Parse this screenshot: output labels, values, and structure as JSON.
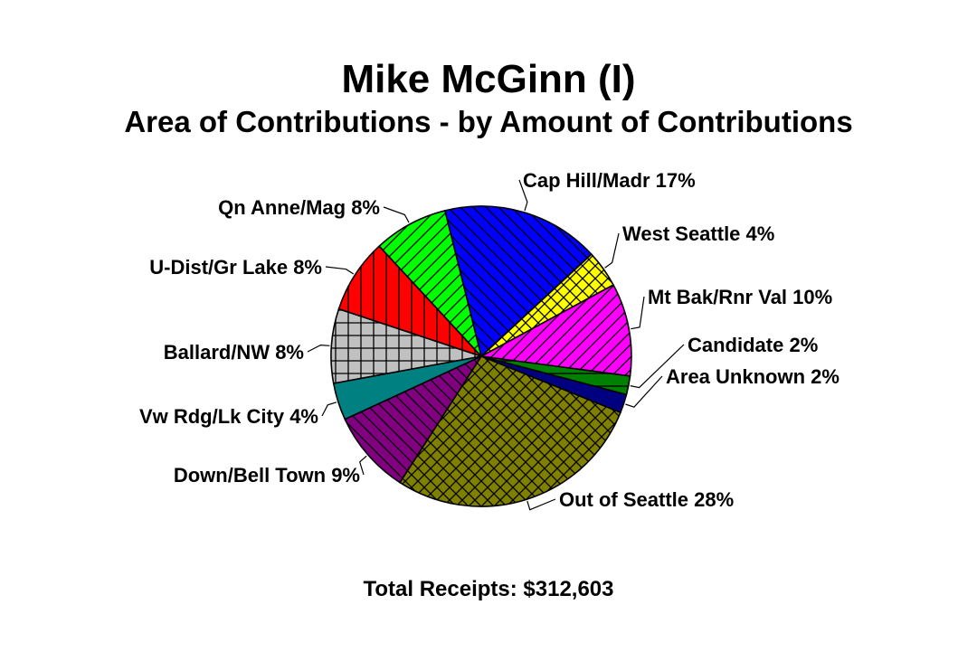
{
  "chart_data": {
    "type": "pie",
    "title": "Mike McGinn (I)",
    "subtitle": "Area of Contributions - by Amount of Contributions",
    "footer": "Total Receipts: $312,603",
    "slices": [
      {
        "label": "Cap Hill/Madr 17%",
        "value": 17,
        "color": "#0000ff",
        "pattern": "diag-back"
      },
      {
        "label": "West Seattle 4%",
        "value": 4,
        "color": "#ffff00",
        "pattern": "cross-diag"
      },
      {
        "label": "Mt Bak/Rnr Val 10%",
        "value": 10,
        "color": "#ff00ff",
        "pattern": "diag-fwd"
      },
      {
        "label": "Candidate 2%",
        "value": 2,
        "color": "#008000",
        "pattern": "horizontal"
      },
      {
        "label": "Area Unknown 2%",
        "value": 2,
        "color": "#000080",
        "pattern": "solid"
      },
      {
        "label": "Out of Seattle 28%",
        "value": 28,
        "color": "#808000",
        "pattern": "cross-diag"
      },
      {
        "label": "Down/Bell Town 9%",
        "value": 9,
        "color": "#800080",
        "pattern": "diag-back"
      },
      {
        "label": "Vw Rdg/Lk City 4%",
        "value": 4,
        "color": "#008080",
        "pattern": "solid"
      },
      {
        "label": "Ballard/NW 8%",
        "value": 8,
        "color": "#c0c0c0",
        "pattern": "grid"
      },
      {
        "label": "U-Dist/Gr Lake 8%",
        "value": 8,
        "color": "#ff0000",
        "pattern": "vertical"
      },
      {
        "label": "Qn Anne/Mag 8%",
        "value": 8,
        "color": "#00ff00",
        "pattern": "diag-fwd"
      }
    ]
  }
}
